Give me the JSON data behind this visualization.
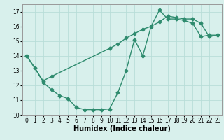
{
  "line1_x": [
    0,
    1,
    2,
    3,
    4,
    5,
    6,
    7,
    8,
    9,
    10,
    11,
    12,
    13,
    14,
    15,
    16,
    17,
    18,
    19,
    20,
    21,
    22,
    23
  ],
  "line1_y": [
    14.0,
    13.2,
    12.2,
    11.7,
    11.3,
    11.1,
    10.5,
    10.35,
    10.35,
    10.35,
    10.4,
    11.5,
    13.0,
    15.1,
    14.0,
    16.0,
    17.1,
    16.5,
    16.5,
    16.4,
    16.2,
    15.3,
    15.4,
    15.4
  ],
  "line2_x": [
    0,
    2,
    3,
    10,
    11,
    12,
    13,
    14,
    15,
    16,
    17,
    18,
    19,
    20,
    21,
    22,
    23
  ],
  "line2_y": [
    14.0,
    12.3,
    12.6,
    14.5,
    14.8,
    15.2,
    15.5,
    15.8,
    16.0,
    16.3,
    16.7,
    16.6,
    16.5,
    16.5,
    16.2,
    15.3,
    15.4
  ],
  "color": "#2e8b6e",
  "bg_color": "#d8f0ec",
  "grid_color": "#b8ddd8",
  "xlabel": "Humidex (Indice chaleur)",
  "xlim": [
    -0.5,
    23.5
  ],
  "ylim": [
    10,
    17.5
  ],
  "yticks": [
    10,
    11,
    12,
    13,
    14,
    15,
    16,
    17
  ],
  "xticks": [
    0,
    1,
    2,
    3,
    4,
    5,
    6,
    7,
    8,
    9,
    10,
    11,
    12,
    13,
    14,
    15,
    16,
    17,
    18,
    19,
    20,
    21,
    22,
    23
  ],
  "label_fontsize": 7,
  "tick_fontsize": 5.5,
  "marker": "D",
  "markersize": 2.5,
  "linewidth": 1.0
}
